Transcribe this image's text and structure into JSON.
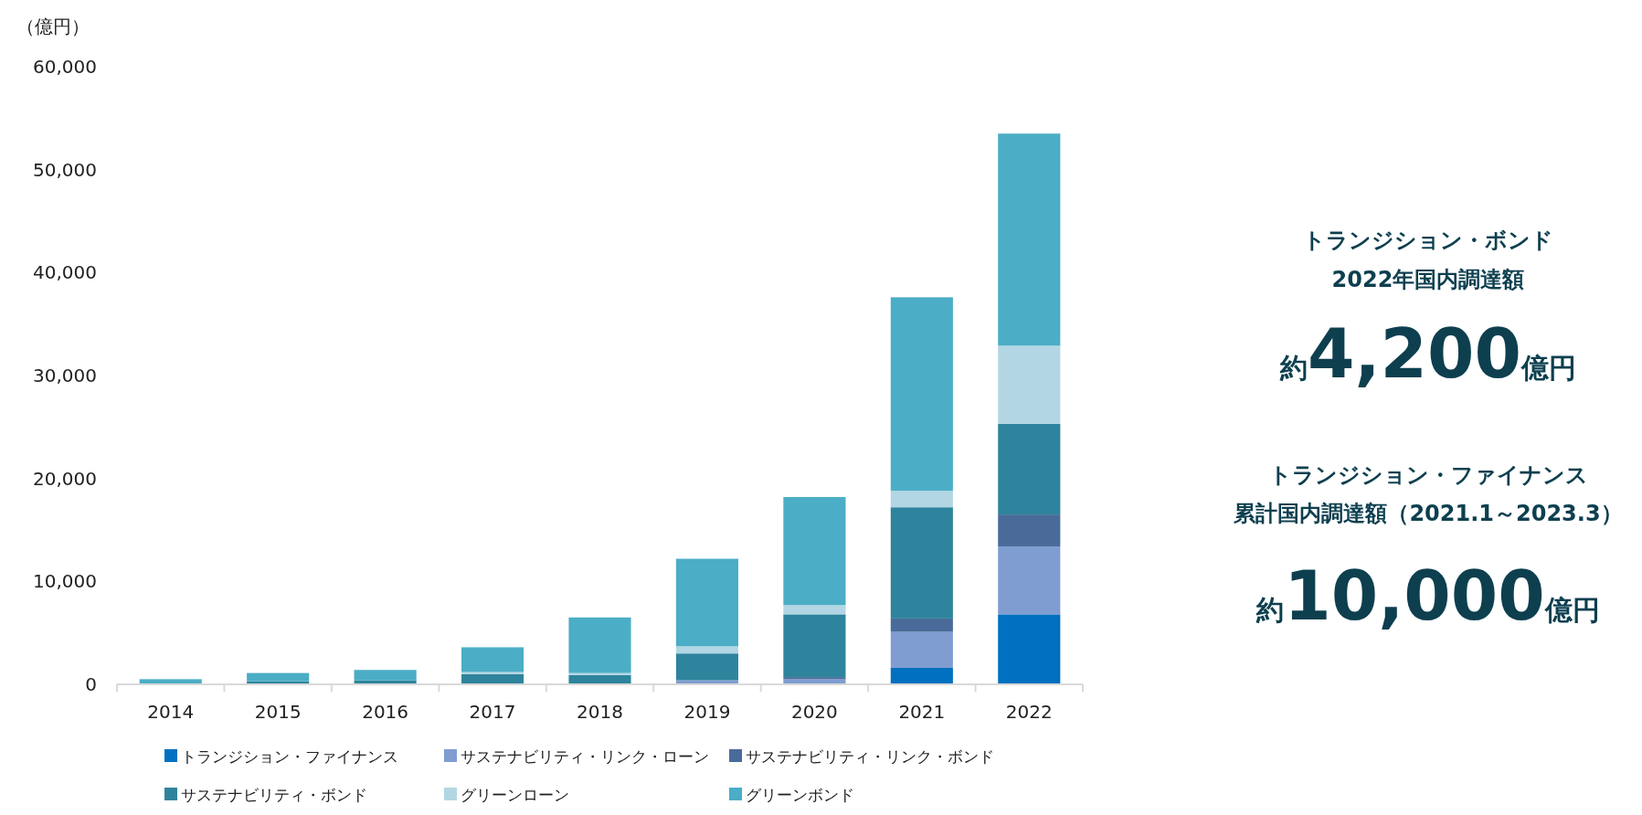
{
  "chart_data": {
    "type": "bar",
    "stacked": true,
    "ylabel": "（億円）",
    "categories": [
      "2014",
      "2015",
      "2016",
      "2017",
      "2018",
      "2019",
      "2020",
      "2021",
      "2022"
    ],
    "series": [
      {
        "name": "トランジション・ファイナンス",
        "color": "#0070c0",
        "values": [
          0,
          0,
          0,
          0,
          0,
          0,
          0,
          1600,
          6800
        ]
      },
      {
        "name": "サステナビリティ・リンク・ローン",
        "color": "#7f9dd1",
        "values": [
          0,
          0,
          0,
          0,
          0,
          400,
          500,
          3500,
          6600
        ]
      },
      {
        "name": "サステナビリティ・リンク・ボンド",
        "color": "#4a6b9a",
        "values": [
          0,
          0,
          0,
          0,
          0,
          0,
          200,
          1300,
          3100
        ]
      },
      {
        "name": "サステナビリティ・ボンド",
        "color": "#2e849c",
        "values": [
          0,
          300,
          400,
          1000,
          900,
          2600,
          6100,
          10800,
          8800
        ]
      },
      {
        "name": "グリーンローン",
        "color": "#b2d6e3",
        "values": [
          0,
          0,
          0,
          200,
          200,
          700,
          900,
          1600,
          7600
        ]
      },
      {
        "name": "グリーンボンド",
        "color": "#4badc6",
        "values": [
          500,
          800,
          1000,
          2400,
          5400,
          8500,
          10500,
          18800,
          20600
        ]
      }
    ],
    "ylim": [
      0,
      60000
    ],
    "yticks": [
      {
        "value": 0,
        "label": "0"
      },
      {
        "value": 10000,
        "label": "10,000"
      },
      {
        "value": 20000,
        "label": "20,000"
      },
      {
        "value": 30000,
        "label": "30,000"
      },
      {
        "value": 40000,
        "label": "40,000"
      },
      {
        "value": 50000,
        "label": "50,000"
      },
      {
        "value": 60000,
        "label": "60,000"
      }
    ],
    "grid": false,
    "legend": "bottom",
    "annotations": [
      "トランジション・ボンド",
      "2022年国内調達額",
      "約4,200億円",
      "トランジション・ファイナンス",
      "累計国内調達額（2021.1～2023.3）",
      "約10,000億円"
    ]
  }
}
